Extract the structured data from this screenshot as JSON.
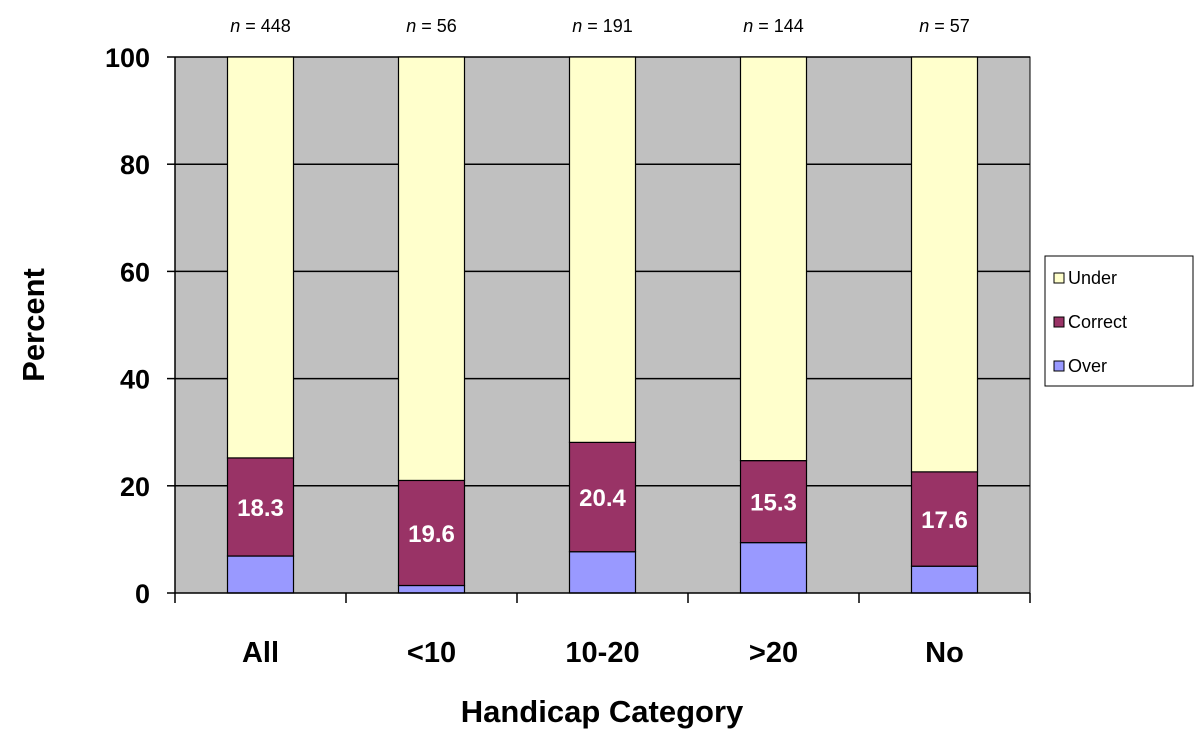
{
  "chart_data": {
    "type": "bar",
    "stacked": true,
    "categories": [
      "All",
      "<10",
      "10-20",
      ">20",
      "No"
    ],
    "n_labels": [
      "448",
      "56",
      "191",
      "144",
      "57"
    ],
    "n_prefix": "n",
    "series": [
      {
        "name": "Over",
        "values": [
          6.9,
          1.4,
          7.7,
          9.4,
          5.0
        ],
        "color": "#9999ff"
      },
      {
        "name": "Correct",
        "values": [
          18.3,
          19.6,
          20.4,
          15.3,
          17.6
        ],
        "color": "#993366"
      },
      {
        "name": "Under",
        "values": [
          74.8,
          79.0,
          71.9,
          75.3,
          77.4
        ],
        "color": "#ffffcc"
      }
    ],
    "data_labels": [
      "18.3",
      "19.6",
      "20.4",
      "15.3",
      "17.6"
    ],
    "xlabel": "Handicap Category",
    "ylabel": "Percent",
    "ylim": [
      0,
      100
    ],
    "yticks": [
      0,
      20,
      40,
      60,
      80,
      100
    ],
    "legend_position": "right",
    "legend_order": [
      "Under",
      "Correct",
      "Over"
    ],
    "grid": true,
    "plot_background": "#c0c0c0",
    "title": ""
  }
}
